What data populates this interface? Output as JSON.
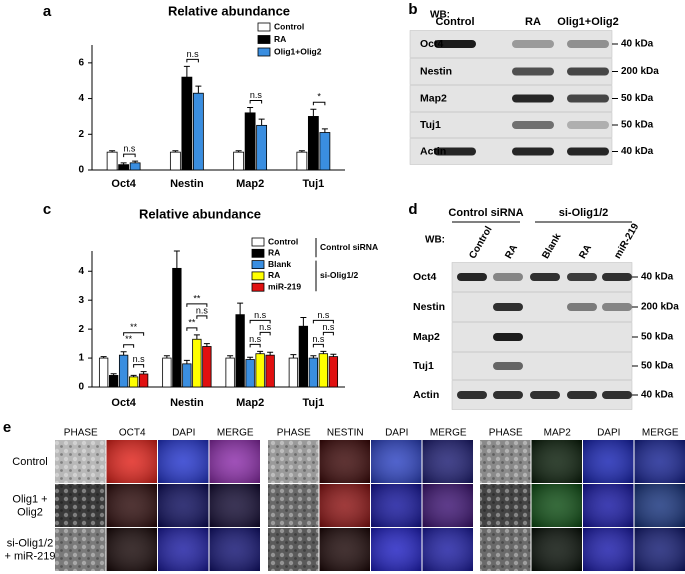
{
  "chart_data": [
    {
      "type": "bar",
      "panel": "a",
      "title": "Relative abundance",
      "categories": [
        "Oct4",
        "Nestin",
        "Map2",
        "Tuj1"
      ],
      "series": [
        {
          "name": "Control",
          "color": "#ffffff",
          "values": [
            1,
            1,
            1,
            1
          ],
          "errors": [
            0.08,
            0.08,
            0.08,
            0.08
          ]
        },
        {
          "name": "RA",
          "color": "#000000",
          "values": [
            0.3,
            5.2,
            3.2,
            3.0
          ],
          "errors": [
            0.1,
            0.6,
            0.3,
            0.4
          ]
        },
        {
          "name": "Olig1+Olig2",
          "color": "#3a8ee0",
          "values": [
            0.4,
            4.3,
            2.5,
            2.1
          ],
          "errors": [
            0.1,
            0.4,
            0.35,
            0.2
          ]
        }
      ],
      "ylim": [
        0,
        7
      ],
      "yticks": [
        0,
        2,
        4,
        6
      ],
      "annotations": [
        {
          "category": 0,
          "from": 1,
          "to": 2,
          "label": "n.s"
        },
        {
          "category": 1,
          "from": 1,
          "to": 2,
          "label": "n.s"
        },
        {
          "category": 2,
          "from": 1,
          "to": 2,
          "label": "n.s"
        },
        {
          "category": 3,
          "from": 1,
          "to": 2,
          "label": "*"
        }
      ]
    },
    {
      "type": "bar",
      "panel": "c",
      "title": "Relative abundance",
      "categories": [
        "Oct4",
        "Nestin",
        "Map2",
        "Tuj1"
      ],
      "series": [
        {
          "name": "Control",
          "color": "#ffffff",
          "values": [
            1,
            1,
            1,
            1
          ],
          "errors": [
            0.05,
            0.08,
            0.08,
            0.12
          ]
        },
        {
          "name": "RA",
          "color": "#000000",
          "values": [
            0.4,
            4.1,
            2.5,
            2.1
          ],
          "errors": [
            0.06,
            0.6,
            0.4,
            0.3
          ]
        },
        {
          "name": "Blank",
          "color": "#3a8ee0",
          "values": [
            1.1,
            0.8,
            0.95,
            1.0
          ],
          "errors": [
            0.12,
            0.12,
            0.08,
            0.08
          ]
        },
        {
          "name": "RA",
          "color": "#ffff00",
          "values": [
            0.35,
            1.65,
            1.15,
            1.15
          ],
          "errors": [
            0.05,
            0.15,
            0.08,
            0.08
          ]
        },
        {
          "name": "miR-219",
          "color": "#e01010",
          "values": [
            0.45,
            1.4,
            1.1,
            1.05
          ],
          "errors": [
            0.08,
            0.1,
            0.1,
            0.08
          ]
        }
      ],
      "legend_groups": [
        {
          "label": "Control siRNA",
          "series": [
            0,
            1
          ]
        },
        {
          "label": "si-Olig1/2",
          "series": [
            2,
            3,
            4
          ]
        }
      ],
      "ylim": [
        0,
        4.7
      ],
      "yticks": [
        0,
        1,
        2,
        3,
        4
      ],
      "annotations": [
        {
          "category": 0,
          "from": 3,
          "to": 4,
          "label": "n.s"
        },
        {
          "category": 0,
          "from": 2,
          "to": 3,
          "label": "**"
        },
        {
          "category": 0,
          "from": 2,
          "to": 4,
          "label": "**"
        },
        {
          "category": 1,
          "from": 2,
          "to": 3,
          "label": "**"
        },
        {
          "category": 1,
          "from": 3,
          "to": 4,
          "label": "n.s"
        },
        {
          "category": 1,
          "from": 2,
          "to": 4,
          "label": "**"
        },
        {
          "category": 2,
          "from": 2,
          "to": 3,
          "label": "n.s"
        },
        {
          "category": 2,
          "from": 3,
          "to": 4,
          "label": "n.s"
        },
        {
          "category": 2,
          "from": 2,
          "to": 4,
          "label": "n.s"
        },
        {
          "category": 3,
          "from": 2,
          "to": 3,
          "label": "n.s"
        },
        {
          "category": 3,
          "from": 3,
          "to": 4,
          "label": "n.s"
        },
        {
          "category": 3,
          "from": 2,
          "to": 4,
          "label": "n.s"
        }
      ]
    }
  ],
  "panel_b": {
    "label": "b",
    "wb": "WB:",
    "lanes": [
      "Control",
      "RA",
      "Olig1+Olig2"
    ],
    "rows": [
      {
        "name": "Oct4",
        "size": "40 kDa"
      },
      {
        "name": "Nestin",
        "size": "200 kDa"
      },
      {
        "name": "Map2",
        "size": "50 kDa"
      },
      {
        "name": "Tuj1",
        "size": "50 kDa"
      },
      {
        "name": "Actin",
        "size": "40 kDa"
      }
    ]
  },
  "panel_d": {
    "label": "d",
    "wb": "WB:",
    "groups": [
      {
        "label": "Control siRNA"
      },
      {
        "label": "si-Olig1/2"
      }
    ],
    "lanes": [
      "Control",
      "RA",
      "Blank",
      "RA",
      "miR-219"
    ],
    "rows": [
      {
        "name": "Oct4",
        "size": "40 kDa"
      },
      {
        "name": "Nestin",
        "size": "200 kDa"
      },
      {
        "name": "Map2",
        "size": "50 kDa"
      },
      {
        "name": "Tuj1",
        "size": "50 kDa"
      },
      {
        "name": "Actin",
        "size": "40 kDa"
      }
    ]
  },
  "panel_e": {
    "label": "e",
    "blocks": [
      {
        "headers": [
          "PHASE",
          "OCT4",
          "DAPI",
          "MERGE"
        ]
      },
      {
        "headers": [
          "PHASE",
          "NESTIN",
          "DAPI",
          "MERGE"
        ]
      },
      {
        "headers": [
          "PHASE",
          "MAP2",
          "DAPI",
          "MERGE"
        ]
      }
    ],
    "rows": [
      [
        "Control"
      ],
      [
        "Olig1 +",
        "Olig2"
      ],
      [
        "si-Olig1/2",
        "+ miR-219"
      ]
    ]
  }
}
